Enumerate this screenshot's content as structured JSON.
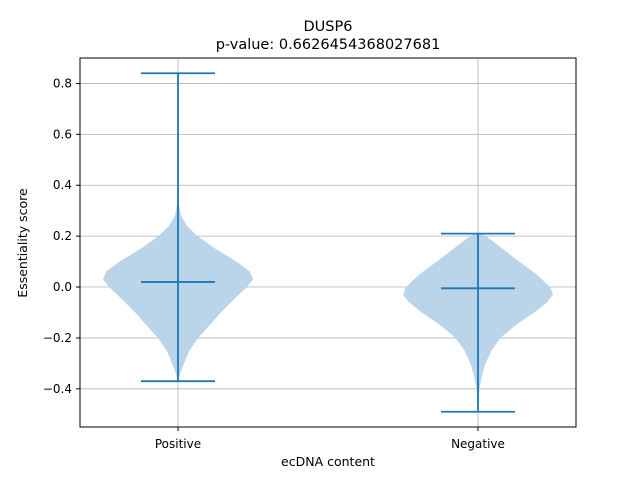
{
  "chart_data": {
    "type": "violin",
    "title": "DUSP6",
    "subtitle": "p-value: 0.6626454368027681",
    "xlabel": "ecDNA content",
    "ylabel": "Essentiality score",
    "categories": [
      "Positive",
      "Negative"
    ],
    "ylim": [
      -0.55,
      0.9
    ],
    "yticks": [
      -0.4,
      -0.2,
      0.0,
      0.2,
      0.4,
      0.6,
      0.8
    ],
    "ytick_labels": [
      "−0.4",
      "−0.2",
      "0.0",
      "0.2",
      "0.4",
      "0.6",
      "0.8"
    ],
    "grid": true,
    "body_color": "#bad4e9",
    "line_color": "#1f77b4",
    "series": [
      {
        "category": "Positive",
        "min": -0.37,
        "max": 0.84,
        "mean": 0.02,
        "density": [
          [
            -0.37,
            0.0
          ],
          [
            -0.34,
            0.03
          ],
          [
            -0.3,
            0.08
          ],
          [
            -0.25,
            0.15
          ],
          [
            -0.2,
            0.27
          ],
          [
            -0.15,
            0.42
          ],
          [
            -0.1,
            0.57
          ],
          [
            -0.05,
            0.74
          ],
          [
            0.0,
            0.92
          ],
          [
            0.03,
            1.0
          ],
          [
            0.06,
            0.96
          ],
          [
            0.1,
            0.78
          ],
          [
            0.15,
            0.5
          ],
          [
            0.2,
            0.26
          ],
          [
            0.24,
            0.12
          ],
          [
            0.28,
            0.04
          ],
          [
            0.32,
            0.015
          ],
          [
            0.4,
            0.006
          ],
          [
            0.6,
            0.004
          ],
          [
            0.75,
            0.006
          ],
          [
            0.82,
            0.003
          ],
          [
            0.84,
            0.0
          ]
        ]
      },
      {
        "category": "Negative",
        "min": -0.49,
        "max": 0.21,
        "mean": -0.005,
        "density": [
          [
            -0.49,
            0.0
          ],
          [
            -0.45,
            0.005
          ],
          [
            -0.4,
            0.02
          ],
          [
            -0.35,
            0.05
          ],
          [
            -0.3,
            0.1
          ],
          [
            -0.25,
            0.18
          ],
          [
            -0.2,
            0.3
          ],
          [
            -0.15,
            0.5
          ],
          [
            -0.1,
            0.75
          ],
          [
            -0.06,
            0.92
          ],
          [
            -0.03,
            1.0
          ],
          [
            0.0,
            0.96
          ],
          [
            0.05,
            0.78
          ],
          [
            0.1,
            0.55
          ],
          [
            0.15,
            0.33
          ],
          [
            0.19,
            0.15
          ],
          [
            0.21,
            0.05
          ]
        ]
      }
    ]
  }
}
